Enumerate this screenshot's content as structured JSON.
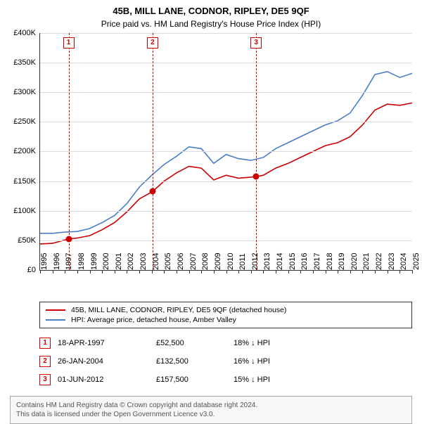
{
  "title": "45B, MILL LANE, CODNOR, RIPLEY, DE5 9QF",
  "subtitle": "Price paid vs. HM Land Registry's House Price Index (HPI)",
  "chart": {
    "type": "line",
    "background_color": "#ffffff",
    "grid_color": "#dddddd",
    "axis_color": "#333333",
    "y": {
      "min": 0,
      "max": 400000,
      "step": 50000,
      "prefix": "£",
      "suffix_k": "K",
      "ticks": [
        "£0",
        "£50K",
        "£100K",
        "£150K",
        "£200K",
        "£250K",
        "£300K",
        "£350K",
        "£400K"
      ]
    },
    "x": {
      "min": 1995,
      "max": 2025,
      "step": 1,
      "ticks": [
        "1995",
        "1996",
        "1997",
        "1998",
        "1999",
        "2000",
        "2001",
        "2002",
        "2003",
        "2004",
        "2005",
        "2006",
        "2007",
        "2008",
        "2009",
        "2010",
        "2011",
        "2012",
        "2013",
        "2014",
        "2015",
        "2016",
        "2017",
        "2018",
        "2019",
        "2020",
        "2021",
        "2022",
        "2023",
        "2024",
        "2025"
      ]
    },
    "series": [
      {
        "name": "property",
        "color": "#cc0000",
        "line_width": 1.6,
        "label": "45B, MILL LANE, CODNOR, RIPLEY, DE5 9QF (detached house)",
        "points": [
          [
            1995,
            44000
          ],
          [
            1996,
            45000
          ],
          [
            1997.3,
            52500
          ],
          [
            1998,
            54000
          ],
          [
            1999,
            58000
          ],
          [
            2000,
            68000
          ],
          [
            2001,
            80000
          ],
          [
            2002,
            98000
          ],
          [
            2003,
            120000
          ],
          [
            2004.07,
            132500
          ],
          [
            2005,
            150000
          ],
          [
            2006,
            164000
          ],
          [
            2007,
            175000
          ],
          [
            2008,
            172000
          ],
          [
            2009,
            152000
          ],
          [
            2010,
            160000
          ],
          [
            2011,
            155000
          ],
          [
            2012.42,
            157500
          ],
          [
            2013,
            160000
          ],
          [
            2014,
            172000
          ],
          [
            2015,
            180000
          ],
          [
            2016,
            190000
          ],
          [
            2017,
            200000
          ],
          [
            2018,
            210000
          ],
          [
            2019,
            215000
          ],
          [
            2020,
            225000
          ],
          [
            2021,
            245000
          ],
          [
            2022,
            270000
          ],
          [
            2023,
            280000
          ],
          [
            2024,
            278000
          ],
          [
            2025,
            282000
          ]
        ]
      },
      {
        "name": "hpi",
        "color": "#4a7ec8",
        "line_width": 1.6,
        "label": "HPI: Average price, detached house, Amber Valley",
        "points": [
          [
            1995,
            62000
          ],
          [
            1996,
            62000
          ],
          [
            1997,
            64000
          ],
          [
            1998,
            65000
          ],
          [
            1999,
            70000
          ],
          [
            2000,
            80000
          ],
          [
            2001,
            92000
          ],
          [
            2002,
            112000
          ],
          [
            2003,
            140000
          ],
          [
            2004,
            160000
          ],
          [
            2005,
            178000
          ],
          [
            2006,
            192000
          ],
          [
            2007,
            208000
          ],
          [
            2008,
            205000
          ],
          [
            2009,
            180000
          ],
          [
            2010,
            195000
          ],
          [
            2011,
            188000
          ],
          [
            2012,
            185000
          ],
          [
            2013,
            190000
          ],
          [
            2014,
            205000
          ],
          [
            2015,
            215000
          ],
          [
            2016,
            225000
          ],
          [
            2017,
            235000
          ],
          [
            2018,
            245000
          ],
          [
            2019,
            252000
          ],
          [
            2020,
            265000
          ],
          [
            2021,
            295000
          ],
          [
            2022,
            330000
          ],
          [
            2023,
            335000
          ],
          [
            2024,
            325000
          ],
          [
            2025,
            332000
          ]
        ]
      }
    ],
    "sale_markers": [
      {
        "n": "1",
        "year": 1997.3,
        "price": 52500
      },
      {
        "n": "2",
        "year": 2004.07,
        "price": 132500
      },
      {
        "n": "3",
        "year": 2012.42,
        "price": 157500
      }
    ],
    "marker_dot_color": "#cc0000",
    "marker_box_border": "#cc0000"
  },
  "legend": {
    "items": [
      {
        "color": "#cc0000",
        "label": "45B, MILL LANE, CODNOR, RIPLEY, DE5 9QF (detached house)"
      },
      {
        "color": "#4a7ec8",
        "label": "HPI: Average price, detached house, Amber Valley"
      }
    ]
  },
  "sales": [
    {
      "n": "1",
      "date": "18-APR-1997",
      "price": "£52,500",
      "delta": "18% ↓ HPI"
    },
    {
      "n": "2",
      "date": "26-JAN-2004",
      "price": "£132,500",
      "delta": "16% ↓ HPI"
    },
    {
      "n": "3",
      "date": "01-JUN-2012",
      "price": "£157,500",
      "delta": "15% ↓ HPI"
    }
  ],
  "footer": {
    "line1": "Contains HM Land Registry data © Crown copyright and database right 2024.",
    "line2": "This data is licensed under the Open Government Licence v3.0."
  }
}
